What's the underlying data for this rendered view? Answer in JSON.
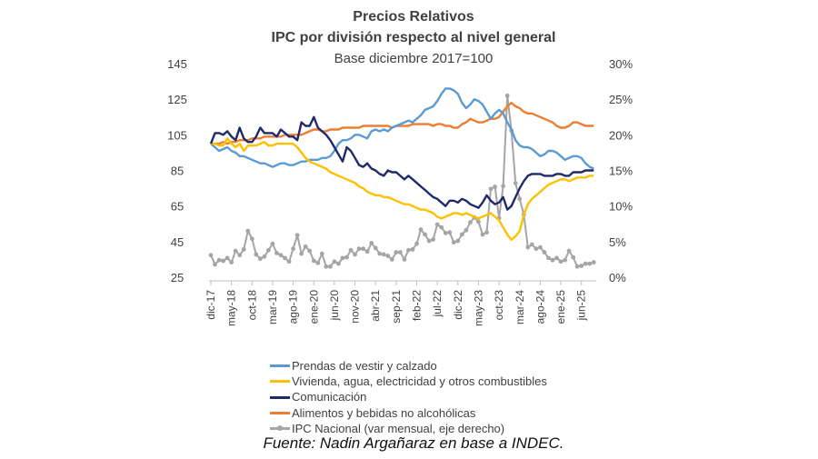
{
  "chart_data": {
    "type": "line",
    "title": "Precios Relativos",
    "subtitle": "IPC por división respecto al nivel general",
    "subtitle2": "Base diciembre 2017=100",
    "source": "Fuente: Nadin Argañaraz en base a INDEC.",
    "ylim_left": [
      25,
      145
    ],
    "yticks_left": [
      "145",
      "125",
      "105",
      "85",
      "65",
      "45",
      "25"
    ],
    "ylim_right": [
      0,
      30
    ],
    "yticks_right": [
      "30%",
      "25%",
      "20%",
      "15%",
      "10%",
      "5%",
      "0%"
    ],
    "grid": false,
    "legend_placement": "bottom",
    "x": [
      "dic-17",
      "ene-18",
      "feb-18",
      "mar-18",
      "abr-18",
      "may-18",
      "jun-18",
      "jul-18",
      "ago-18",
      "sep-18",
      "oct-18",
      "nov-18",
      "dic-18",
      "ene-19",
      "feb-19",
      "mar-19",
      "abr-19",
      "may-19",
      "jun-19",
      "jul-19",
      "ago-19",
      "sep-19",
      "oct-19",
      "nov-19",
      "dic-19",
      "ene-20",
      "feb-20",
      "mar-20",
      "abr-20",
      "may-20",
      "jun-20",
      "jul-20",
      "ago-20",
      "sep-20",
      "oct-20",
      "nov-20",
      "dic-20",
      "ene-21",
      "feb-21",
      "mar-21",
      "abr-21",
      "may-21",
      "jun-21",
      "jul-21",
      "ago-21",
      "sep-21",
      "oct-21",
      "nov-21",
      "dic-21",
      "ene-22",
      "feb-22",
      "mar-22",
      "abr-22",
      "may-22",
      "jun-22",
      "jul-22",
      "ago-22",
      "sep-22",
      "oct-22",
      "nov-22",
      "dic-22",
      "ene-23",
      "feb-23",
      "mar-23",
      "abr-23",
      "may-23",
      "jun-23",
      "jul-23",
      "ago-23",
      "sep-23",
      "oct-23",
      "nov-23",
      "dic-23",
      "ene-24",
      "feb-24",
      "mar-24",
      "abr-24",
      "may-24",
      "jun-24",
      "jul-24",
      "ago-24",
      "sep-24",
      "oct-24",
      "nov-24",
      "dic-24",
      "ene-25",
      "feb-25",
      "mar-25",
      "abr-25",
      "may-25",
      "jun-25",
      "jul-25",
      "ago-25",
      "sep-25"
    ],
    "xtick_labels": [
      "dic-17",
      "may-18",
      "oct-18",
      "mar-19",
      "ago-19",
      "ene-20",
      "jun-20",
      "nov-20",
      "abr-21",
      "sep-21",
      "feb-22",
      "jul-22",
      "dic-22",
      "may-23",
      "oct-23",
      "mar-24",
      "ago-24",
      "ene-25",
      "jun-25"
    ],
    "series": [
      {
        "name": "Prendas de vestir y calzado",
        "color": "#5b9bd5",
        "axis": "left",
        "marker": false,
        "values": [
          100,
          98,
          96,
          97,
          98,
          96,
          95,
          93,
          93,
          92,
          91,
          90,
          89,
          89,
          88,
          87,
          88,
          89,
          89,
          88,
          88,
          89,
          90,
          90,
          91,
          91,
          91,
          92,
          92,
          93,
          96,
          100,
          102,
          102,
          103,
          105,
          105,
          104,
          103,
          107,
          108,
          107,
          108,
          107,
          109,
          110,
          111,
          112,
          113,
          112,
          114,
          116,
          119,
          120,
          121,
          124,
          128,
          131,
          131,
          130,
          128,
          123,
          120,
          122,
          125,
          124,
          122,
          118,
          114,
          117,
          119,
          117,
          112,
          108,
          102,
          99,
          98,
          98,
          97,
          95,
          93,
          94,
          96,
          96,
          95,
          93,
          91,
          92,
          93,
          93,
          92,
          89,
          87,
          86
        ]
      },
      {
        "name": "Vivienda, agua, electricidad y otros combustibles",
        "color": "#ffc000",
        "axis": "left",
        "marker": false,
        "values": [
          100,
          100,
          99,
          99,
          103,
          100,
          98,
          100,
          96,
          99,
          99,
          99,
          100,
          101,
          99,
          99,
          100,
          100,
          100,
          100,
          100,
          98,
          95,
          92,
          90,
          89,
          88,
          87,
          86,
          84,
          83,
          82,
          81,
          80,
          79,
          78,
          76,
          75,
          73,
          72,
          71,
          71,
          70,
          70,
          69,
          68,
          67,
          66,
          66,
          65,
          64,
          63,
          63,
          62,
          61,
          59,
          58,
          59,
          60,
          61,
          61,
          60,
          61,
          60,
          59,
          58,
          59,
          60,
          61,
          59,
          57,
          53,
          49,
          46,
          48,
          51,
          60,
          66,
          69,
          71,
          73,
          75,
          77,
          78,
          79,
          80,
          80,
          79,
          80,
          81,
          81,
          81,
          82,
          82
        ]
      },
      {
        "name": "Comunicación",
        "color": "#1f2a6b",
        "axis": "left",
        "marker": false,
        "values": [
          100,
          106,
          106,
          105,
          107,
          104,
          102,
          109,
          103,
          101,
          101,
          104,
          109,
          106,
          106,
          106,
          104,
          108,
          106,
          104,
          104,
          102,
          112,
          110,
          110,
          115,
          109,
          107,
          105,
          102,
          98,
          94,
          90,
          98,
          96,
          92,
          88,
          87,
          89,
          86,
          85,
          83,
          82,
          85,
          84,
          84,
          82,
          80,
          82,
          80,
          78,
          76,
          74,
          72,
          70,
          69,
          67,
          65,
          68,
          68,
          67,
          69,
          68,
          66,
          65,
          64,
          67,
          71,
          68,
          66,
          67,
          70,
          63,
          65,
          70,
          75,
          79,
          82,
          83,
          83,
          83,
          82,
          82,
          82,
          83,
          83,
          82,
          82,
          84,
          84,
          84,
          85,
          85,
          85
        ]
      },
      {
        "name": "Alimentos y bebidas no alcohólicas",
        "color": "#ed7d31",
        "axis": "left",
        "marker": false,
        "values": [
          100,
          100,
          100,
          101,
          100,
          101,
          101,
          102,
          102,
          102,
          103,
          103,
          103,
          104,
          104,
          104,
          104,
          104,
          105,
          105,
          105,
          105,
          105,
          106,
          107,
          108,
          108,
          107,
          107,
          108,
          108,
          108,
          109,
          109,
          109,
          109,
          109,
          110,
          110,
          110,
          110,
          110,
          110,
          110,
          109,
          110,
          110,
          110,
          110,
          111,
          111,
          111,
          111,
          111,
          110,
          111,
          111,
          110,
          110,
          109,
          109,
          111,
          112,
          114,
          113,
          112,
          112,
          113,
          114,
          114,
          115,
          118,
          121,
          123,
          121,
          120,
          118,
          117,
          117,
          116,
          115,
          114,
          113,
          112,
          110,
          109,
          109,
          110,
          112,
          112,
          111,
          110,
          110,
          110
        ]
      },
      {
        "name": "IPC Nacional (var mensual, eje derecho)",
        "color": "#a5a5a5",
        "axis": "right",
        "marker": true,
        "values": [
          3.1,
          1.8,
          2.4,
          2.3,
          2.7,
          2.1,
          3.7,
          3.1,
          3.9,
          6.5,
          5.4,
          3.2,
          2.6,
          2.9,
          3.8,
          4.7,
          3.4,
          3.1,
          2.7,
          2.2,
          4.0,
          5.9,
          3.3,
          4.3,
          3.7,
          2.3,
          2.0,
          3.3,
          1.5,
          1.5,
          2.2,
          1.9,
          2.7,
          2.8,
          3.8,
          3.2,
          4.0,
          4.0,
          3.6,
          4.8,
          4.1,
          3.3,
          3.2,
          3.0,
          2.5,
          3.5,
          3.5,
          2.5,
          3.8,
          3.9,
          4.7,
          6.7,
          6.0,
          5.1,
          5.3,
          7.4,
          7.0,
          6.2,
          6.3,
          4.9,
          5.1,
          6.0,
          6.6,
          7.7,
          8.4,
          7.8,
          6.0,
          6.3,
          12.4,
          12.7,
          8.3,
          12.8,
          25.5,
          20.6,
          13.2,
          11.0,
          8.8,
          4.2,
          4.6,
          4.0,
          4.2,
          3.5,
          2.7,
          2.4,
          2.7,
          2.2,
          2.4,
          3.7,
          2.8,
          1.5,
          1.6,
          1.9,
          1.9,
          2.1
        ]
      }
    ]
  }
}
